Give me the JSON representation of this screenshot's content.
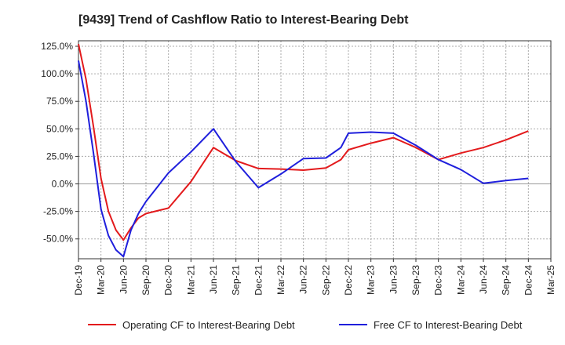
{
  "chart_data": {
    "type": "line",
    "title": "[9439]  Trend of Cashflow Ratio to Interest-Bearing Debt",
    "xlabel": "",
    "ylabel": "",
    "x_ticks": [
      "Dec-19",
      "Mar-20",
      "Jun-20",
      "Sep-20",
      "Dec-20",
      "Mar-21",
      "Jun-21",
      "Sep-21",
      "Dec-21",
      "Mar-22",
      "Jun-22",
      "Sep-22",
      "Dec-22",
      "Mar-23",
      "Jun-23",
      "Sep-23",
      "Dec-23",
      "Mar-24",
      "Jun-24",
      "Sep-24",
      "Dec-24",
      "Mar-25"
    ],
    "y_ticks": [
      125,
      100,
      75,
      50,
      25,
      0,
      -25,
      -50
    ],
    "y_tick_labels": [
      "125.0%",
      "100.0%",
      "75.0%",
      "50.0%",
      "25.0%",
      "0.0%",
      "-25.0%",
      "-50.0%"
    ],
    "ylim": [
      -68,
      130
    ],
    "grid": true,
    "legend_position": "bottom",
    "series": [
      {
        "name": "Operating CF to Interest-Bearing Debt",
        "color": "#e31a1c",
        "points": [
          [
            "Dec-19",
            127
          ],
          [
            "Jan-20",
            95
          ],
          [
            "Feb-20",
            52
          ],
          [
            "Mar-20",
            5
          ],
          [
            "Apr-20",
            -25
          ],
          [
            "May-20",
            -42
          ],
          [
            "Jun-20",
            -51
          ],
          [
            "Jul-20",
            -40
          ],
          [
            "Aug-20",
            -31
          ],
          [
            "Sep-20",
            -27
          ],
          [
            "Dec-20",
            -22
          ],
          [
            "Mar-21",
            2
          ],
          [
            "Jun-21",
            33
          ],
          [
            "Sep-21",
            21
          ],
          [
            "Dec-21",
            14
          ],
          [
            "Mar-22",
            13.5
          ],
          [
            "Jun-22",
            12.5
          ],
          [
            "Sep-22",
            14.5
          ],
          [
            "Nov-22",
            22
          ],
          [
            "Dec-22",
            31
          ],
          [
            "Mar-23",
            37
          ],
          [
            "Jun-23",
            42
          ],
          [
            "Sep-23",
            33
          ],
          [
            "Dec-23",
            22
          ],
          [
            "Mar-24",
            28
          ],
          [
            "Jun-24",
            33
          ],
          [
            "Sep-24",
            40
          ],
          [
            "Dec-24",
            48
          ]
        ]
      },
      {
        "name": "Free CF to Interest-Bearing Debt",
        "color": "#1f1fdc",
        "points": [
          [
            "Dec-19",
            112
          ],
          [
            "Jan-20",
            75
          ],
          [
            "Feb-20",
            28
          ],
          [
            "Mar-20",
            -23
          ],
          [
            "Apr-20",
            -47
          ],
          [
            "May-20",
            -60
          ],
          [
            "Jun-20",
            -66
          ],
          [
            "Jul-20",
            -42
          ],
          [
            "Aug-20",
            -27
          ],
          [
            "Sep-20",
            -16
          ],
          [
            "Dec-20",
            10
          ],
          [
            "Mar-21",
            29
          ],
          [
            "Jun-21",
            50
          ],
          [
            "Sep-21",
            20
          ],
          [
            "Dec-21",
            -3.5
          ],
          [
            "Mar-22",
            9
          ],
          [
            "Jun-22",
            23
          ],
          [
            "Sep-22",
            23.5
          ],
          [
            "Nov-22",
            33
          ],
          [
            "Dec-22",
            46
          ],
          [
            "Mar-23",
            47
          ],
          [
            "Jun-23",
            46
          ],
          [
            "Sep-23",
            35
          ],
          [
            "Dec-23",
            22
          ],
          [
            "Mar-24",
            13
          ],
          [
            "Jun-24",
            0.5
          ],
          [
            "Sep-24",
            3
          ],
          [
            "Dec-24",
            5
          ]
        ]
      }
    ]
  }
}
